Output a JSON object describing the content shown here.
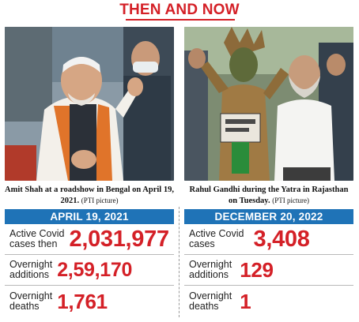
{
  "title": "THEN AND NOW",
  "left": {
    "photo_icon": "person-at-roadshow-photo",
    "caption_bold": "Amit Shah at a roadshow in Bengal on April 19, 2021.",
    "caption_credit": "(PTI picture)",
    "date": "APRIL 19, 2021",
    "stats": [
      {
        "label": "Active Covid\ncases then",
        "value": "2,031,977"
      },
      {
        "label": "Overnight\nadditions",
        "value": "2,59,170"
      },
      {
        "label": "Overnight\ndeaths",
        "value": "1,761"
      }
    ]
  },
  "right": {
    "photo_icon": "yatra-march-photo",
    "caption_bold": "Rahul Gandhi during the Yatra in Rajasthan on Tuesday.",
    "caption_credit": "(PTI picture)",
    "date": "DECEMBER 20, 2022",
    "stats": [
      {
        "label": "Active Covid\ncases",
        "value": "3,408"
      },
      {
        "label": "Overnight\nadditions",
        "value": "129"
      },
      {
        "label": "Overnight\ndeaths",
        "value": "1"
      }
    ]
  },
  "colors": {
    "accent_red": "#d42027",
    "banner_blue": "#1f73b7"
  }
}
